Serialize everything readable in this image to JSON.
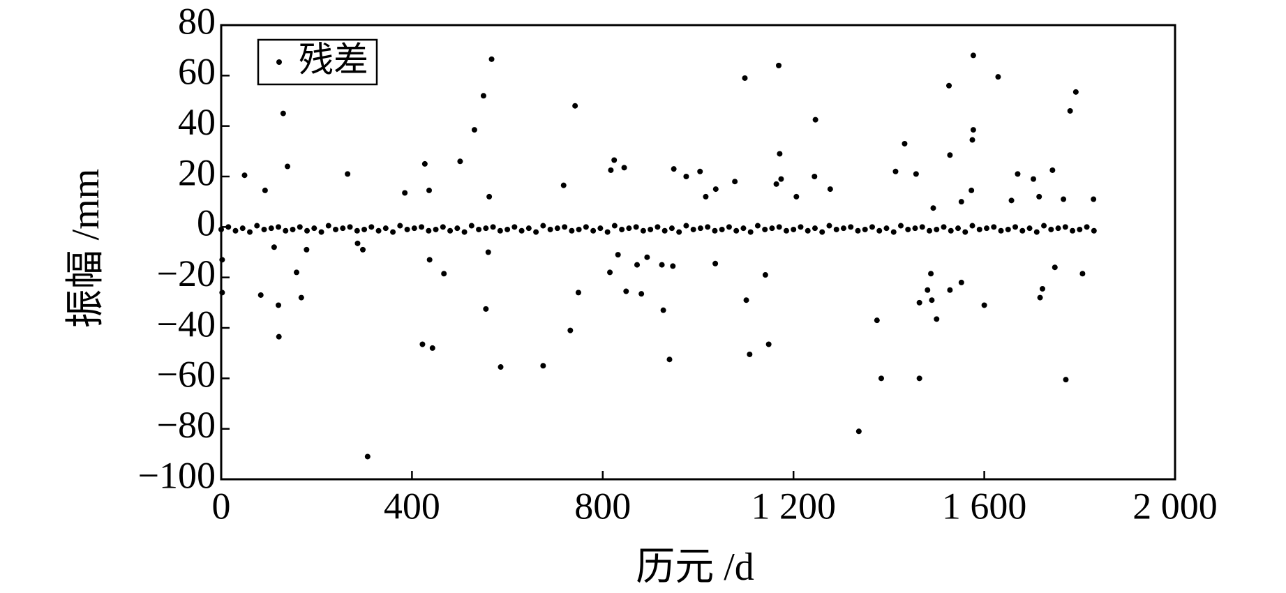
{
  "chart_data": {
    "type": "scatter",
    "xlabel": "历元 /d",
    "ylabel": "振幅 /mm",
    "xlim": [
      0,
      2000
    ],
    "ylim": [
      -100,
      80
    ],
    "xticks": [
      0,
      400,
      800,
      {
        "value": 1200,
        "label": "1 200"
      },
      {
        "value": 1600,
        "label": "1 600"
      },
      {
        "value": 2000,
        "label": "2 000"
      }
    ],
    "yticks": [
      {
        "value": -100,
        "label": "−100"
      },
      {
        "value": -80,
        "label": "−80"
      },
      {
        "value": -60,
        "label": "−60"
      },
      {
        "value": -40,
        "label": "−40"
      },
      {
        "value": -20,
        "label": "−20"
      },
      0,
      20,
      40,
      60,
      80
    ],
    "legend": "upper left",
    "x": [
      0,
      15,
      30,
      45,
      60,
      75,
      90,
      105,
      120,
      135,
      150,
      165,
      180,
      195,
      210,
      225,
      240,
      255,
      270,
      285,
      300,
      315,
      330,
      345,
      360,
      375,
      390,
      405,
      420,
      435,
      450,
      465,
      480,
      495,
      510,
      525,
      540,
      555,
      570,
      585,
      600,
      615,
      630,
      645,
      660,
      675,
      690,
      705,
      720,
      735,
      750,
      765,
      780,
      795,
      810,
      825,
      840,
      855,
      870,
      885,
      900,
      915,
      930,
      945,
      960,
      975,
      990,
      1005,
      1020,
      1035,
      1050,
      1065,
      1080,
      1095,
      1110,
      1125,
      1140,
      1155,
      1170,
      1185,
      1200,
      1215,
      1230,
      1245,
      1260,
      1275,
      1290,
      1305,
      1320,
      1335,
      1350,
      1365,
      1380,
      1395,
      1410,
      1425,
      1440,
      1455,
      1470,
      1485,
      1500,
      1515,
      1530,
      1545,
      1560,
      1575,
      1590,
      1605,
      1620,
      1635,
      1650,
      1665,
      1680,
      1695,
      1710,
      1725,
      1740,
      1755,
      1770,
      1785,
      1800,
      1815,
      1830,
      49,
      92,
      130,
      139,
      2,
      2,
      111,
      83,
      120,
      121,
      158,
      168,
      179,
      265,
      286,
      297,
      307,
      385,
      427,
      436,
      501,
      531,
      550,
      567,
      562,
      422,
      443,
      437,
      467,
      555,
      560,
      586,
      675,
      718,
      742,
      732,
      749,
      817,
      824,
      845,
      832,
      815,
      849,
      872,
      881,
      893,
      924,
      927,
      940,
      949,
      947,
      975,
      1004,
      1016,
      1037,
      1036,
      1077,
      1098,
      1101,
      1108,
      1141,
      1148,
      1164,
      1171,
      1174,
      1169,
      1206,
      1244,
      1246,
      1277,
      1337,
      1375,
      1384,
      1414,
      1433,
      1457,
      1464,
      1464,
      1481,
      1488,
      1490,
      1493,
      1500,
      1526,
      1528,
      1528,
      1552,
      1552,
      1573,
      1575,
      1577,
      1577,
      1600,
      1629,
      1657,
      1670,
      1703,
      1715,
      1717,
      1722,
      1743,
      1748,
      1766,
      1771,
      1780,
      1792,
      1806,
      1829
    ],
    "series": [
      {
        "name": "残差",
        "color": "#000000",
        "values": [
          -1,
          0,
          -1.5,
          -0.5,
          -2,
          0.5,
          -1,
          -0.5,
          0,
          -1.5,
          -1,
          0,
          -1.5,
          -0.5,
          -2,
          0.5,
          -1,
          -0.5,
          0,
          -1.5,
          -1,
          0,
          -1.5,
          -0.5,
          -2,
          0.5,
          -1,
          -0.5,
          0,
          -1.5,
          -1,
          0,
          -1.5,
          -0.5,
          -2,
          0.5,
          -1,
          -0.5,
          0,
          -1.5,
          -1,
          0,
          -1.5,
          -0.5,
          -2,
          0.5,
          -1,
          -0.5,
          0,
          -1.5,
          -1,
          0,
          -1.5,
          -0.5,
          -2,
          0.5,
          -1,
          -0.5,
          0,
          -1.5,
          -1,
          0,
          -1.5,
          -0.5,
          -2,
          0.5,
          -1,
          -0.5,
          0,
          -1.5,
          -1,
          0,
          -1.5,
          -0.5,
          -2,
          0.5,
          -1,
          -0.5,
          0,
          -1.5,
          -1,
          0,
          -1.5,
          -0.5,
          -2,
          0.5,
          -1,
          -0.5,
          0,
          -1.5,
          -1,
          0,
          -1.5,
          -0.5,
          -2,
          0.5,
          -1,
          -0.5,
          0,
          -1.5,
          -1,
          0,
          -1.5,
          -0.5,
          -2,
          0.5,
          -1,
          -0.5,
          0,
          -1.5,
          -1,
          0,
          -1.5,
          -0.5,
          -2,
          0.5,
          -1,
          -0.5,
          0,
          -1.5,
          -1,
          0,
          -1.5,
          20.5,
          14.5,
          45,
          24,
          -13,
          -26,
          -8,
          -27,
          -31,
          -43.5,
          -18,
          -28,
          -9,
          21,
          -6.5,
          -9,
          -91,
          13.5,
          25,
          14.5,
          26,
          38.5,
          52,
          66.5,
          12,
          -46.5,
          -48,
          -13,
          -18.5,
          -32.5,
          -10,
          -55.5,
          -55,
          16.5,
          48,
          -41,
          -26,
          22.5,
          26.5,
          23.5,
          -11,
          -18,
          -25.5,
          -15,
          -26.5,
          -12,
          -15,
          -33,
          -52.5,
          23,
          -15.5,
          20,
          22,
          12,
          15,
          -14.5,
          18,
          59,
          -29,
          -50.5,
          -19,
          -46.5,
          17,
          29,
          19,
          64,
          12,
          20,
          42.5,
          15,
          -81,
          -37,
          -60,
          22,
          33,
          21,
          -60,
          -30,
          -25,
          -18.5,
          -29,
          7.5,
          -36.5,
          56,
          28.5,
          -25,
          10,
          -22,
          14.5,
          34.5,
          38.5,
          68,
          -31,
          59.5,
          10.5,
          21,
          19,
          12,
          -28,
          -24.5,
          22.5,
          -16,
          11,
          -60.5,
          46,
          53.5,
          -18.5,
          11
        ]
      }
    ]
  }
}
